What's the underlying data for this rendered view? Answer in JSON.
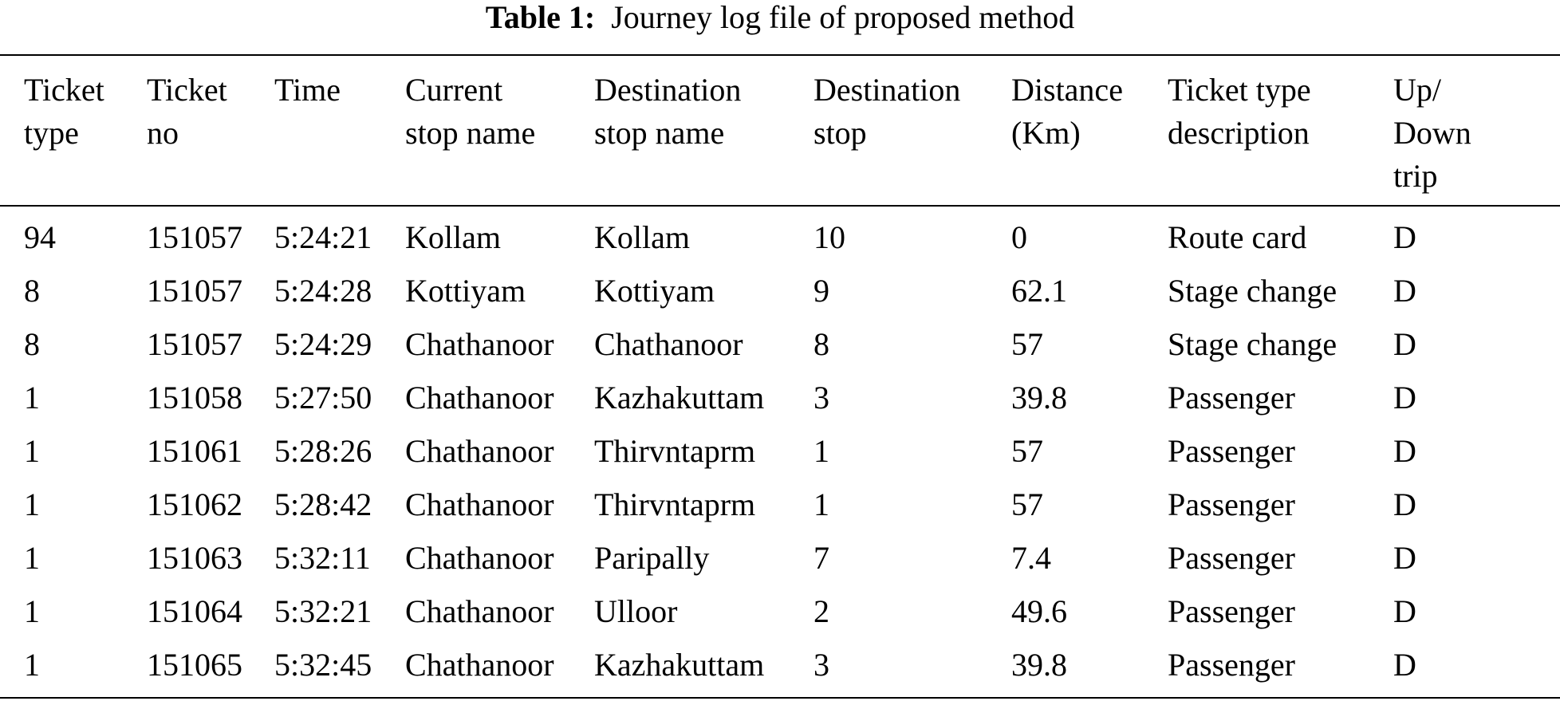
{
  "caption": {
    "label": "Table 1:",
    "text": "Journey log file of proposed method"
  },
  "headers": [
    [
      "Ticket",
      "type"
    ],
    [
      "Ticket",
      "no"
    ],
    [
      "Time"
    ],
    [
      "Current",
      "stop name"
    ],
    [
      "Destination",
      "stop name"
    ],
    [
      "Destination",
      "stop"
    ],
    [
      "Distance",
      "(Km)"
    ],
    [
      "Ticket type",
      "description"
    ],
    [
      "Up/",
      "Down",
      "trip"
    ]
  ],
  "rows": [
    [
      "94",
      "151057",
      "5:24:21",
      "Kollam",
      "Kollam",
      "10",
      "0",
      "Route card",
      "D"
    ],
    [
      "8",
      "151057",
      "5:24:28",
      "Kottiyam",
      "Kottiyam",
      "9",
      "62.1",
      "Stage change",
      "D"
    ],
    [
      "8",
      "151057",
      "5:24:29",
      "Chathanoor",
      "Chathanoor",
      "8",
      "57",
      "Stage change",
      "D"
    ],
    [
      "1",
      "151058",
      "5:27:50",
      "Chathanoor",
      "Kazhakuttam",
      "3",
      "39.8",
      "Passenger",
      "D"
    ],
    [
      "1",
      "151061",
      "5:28:26",
      "Chathanoor",
      "Thirvntaprm",
      "1",
      "57",
      "Passenger",
      "D"
    ],
    [
      "1",
      "151062",
      "5:28:42",
      "Chathanoor",
      "Thirvntaprm",
      "1",
      "57",
      "Passenger",
      "D"
    ],
    [
      "1",
      "151063",
      "5:32:11",
      "Chathanoor",
      "Paripally",
      "7",
      "7.4",
      "Passenger",
      "D"
    ],
    [
      "1",
      "151064",
      "5:32:21",
      "Chathanoor",
      "Ulloor",
      "2",
      "49.6",
      "Passenger",
      "D"
    ],
    [
      "1",
      "151065",
      "5:32:45",
      "Chathanoor",
      "Kazhakuttam",
      "3",
      "39.8",
      "Passenger",
      "D"
    ]
  ]
}
